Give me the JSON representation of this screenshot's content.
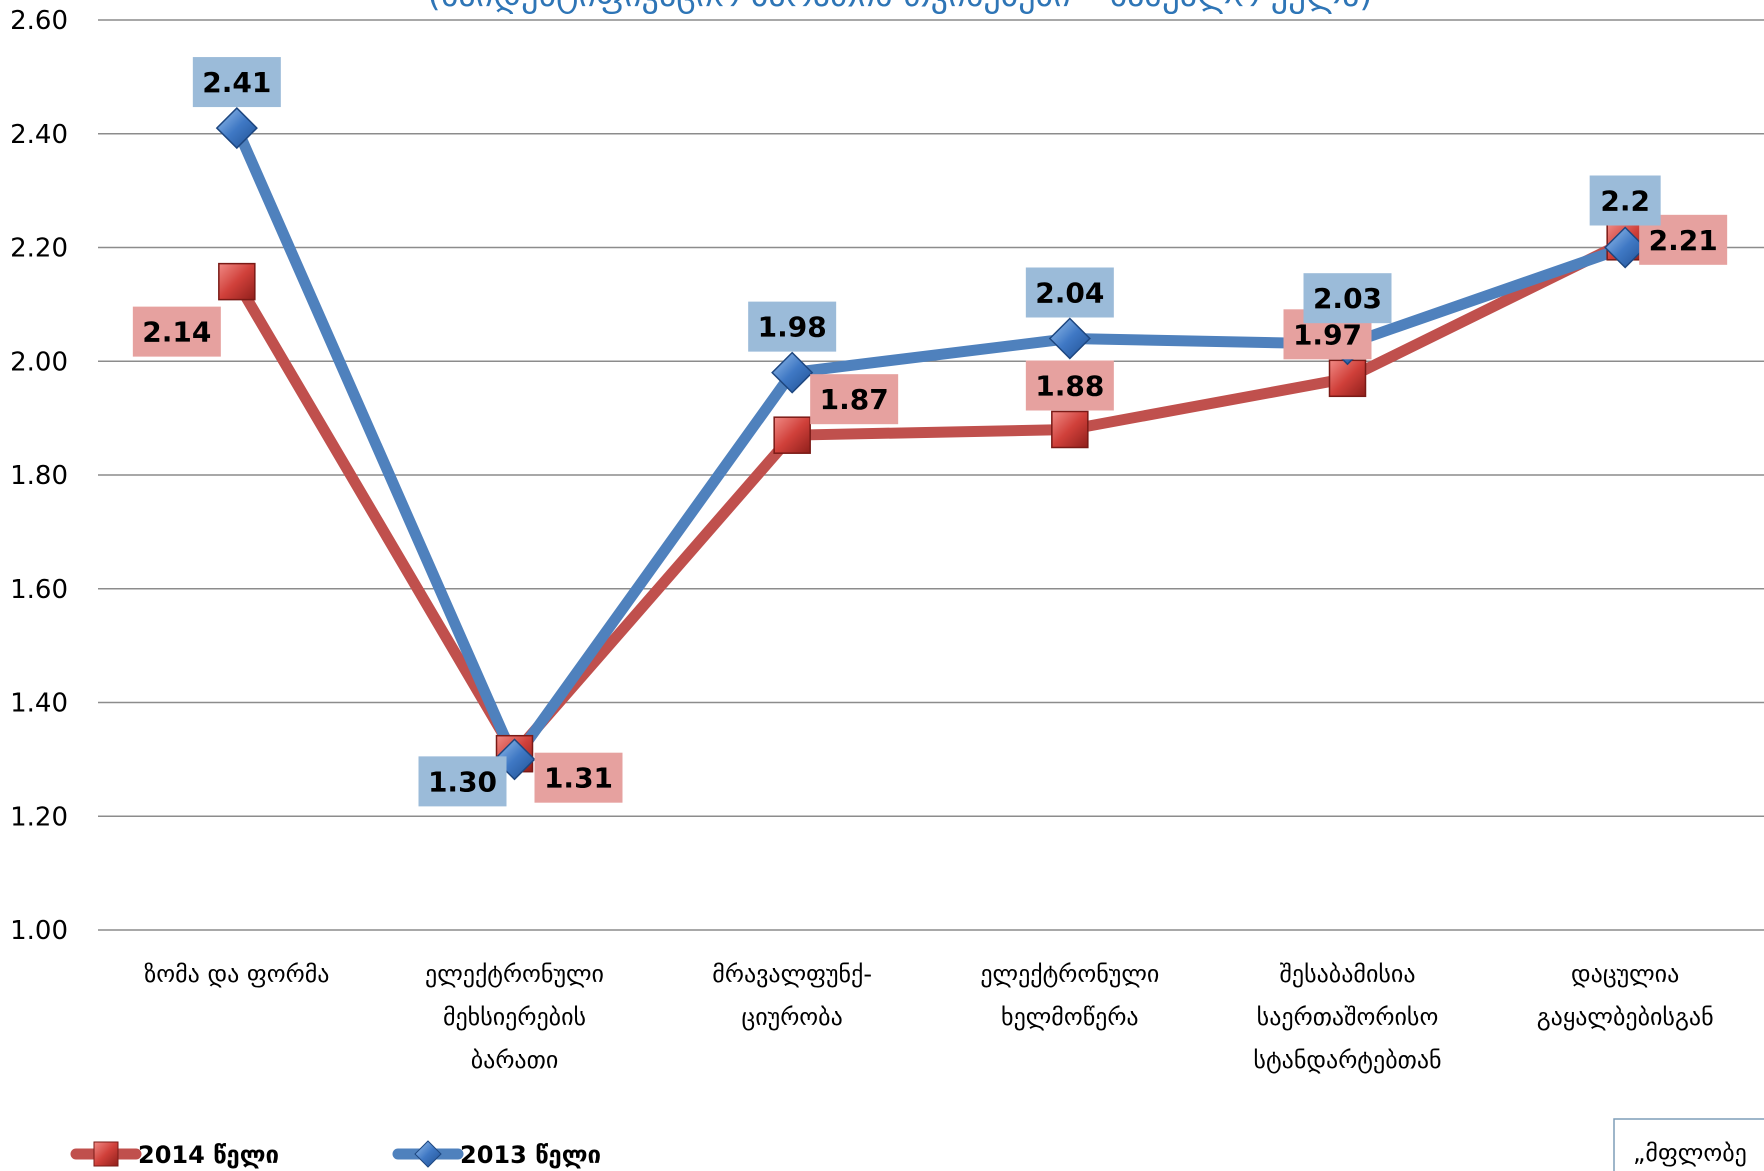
{
  "chart_data": {
    "type": "line",
    "title": "(საიდენტიფიკაციო ბარათის თვისებები – საშუალო ქულა)",
    "ylim": [
      1.0,
      2.6
    ],
    "yticks": [
      "1.00",
      "1.20",
      "1.40",
      "1.60",
      "1.80",
      "2.00",
      "2.20",
      "2.40",
      "2.60"
    ],
    "grid": true,
    "legend_position": "bottom-left",
    "categories": [
      [
        "ზომა და ფორმა"
      ],
      [
        "ელექტრონული",
        "მეხსიერების",
        "ბარათი"
      ],
      [
        "მრავალფუნქ-",
        "ციურობა"
      ],
      [
        "ელექტრონული",
        "ხელმოწერა"
      ],
      [
        "შესაბამისია",
        "საერთაშორისო",
        "სტანდარტებთან"
      ],
      [
        "დაცულია",
        "გაყალბებისგან"
      ]
    ],
    "series": [
      {
        "name": "2014 წელი",
        "color": "#c0504d",
        "label_bg": "#e6a19f",
        "marker": "square",
        "values": [
          2.14,
          1.31,
          1.87,
          1.88,
          1.97,
          2.21
        ],
        "labels": [
          "2.14",
          "1.31",
          "1.87",
          "1.88",
          "1.97",
          "2.21"
        ]
      },
      {
        "name": "2013 წელი",
        "color": "#4f81bd",
        "label_bg": "#9bbbd9",
        "marker": "diamond",
        "values": [
          2.41,
          1.3,
          1.98,
          2.04,
          2.03,
          2.2
        ],
        "labels": [
          "2.41",
          "1.30",
          "1.98",
          "2.04",
          "2.03",
          "2.2"
        ]
      }
    ]
  },
  "note": {
    "text": "„მფლობე"
  }
}
